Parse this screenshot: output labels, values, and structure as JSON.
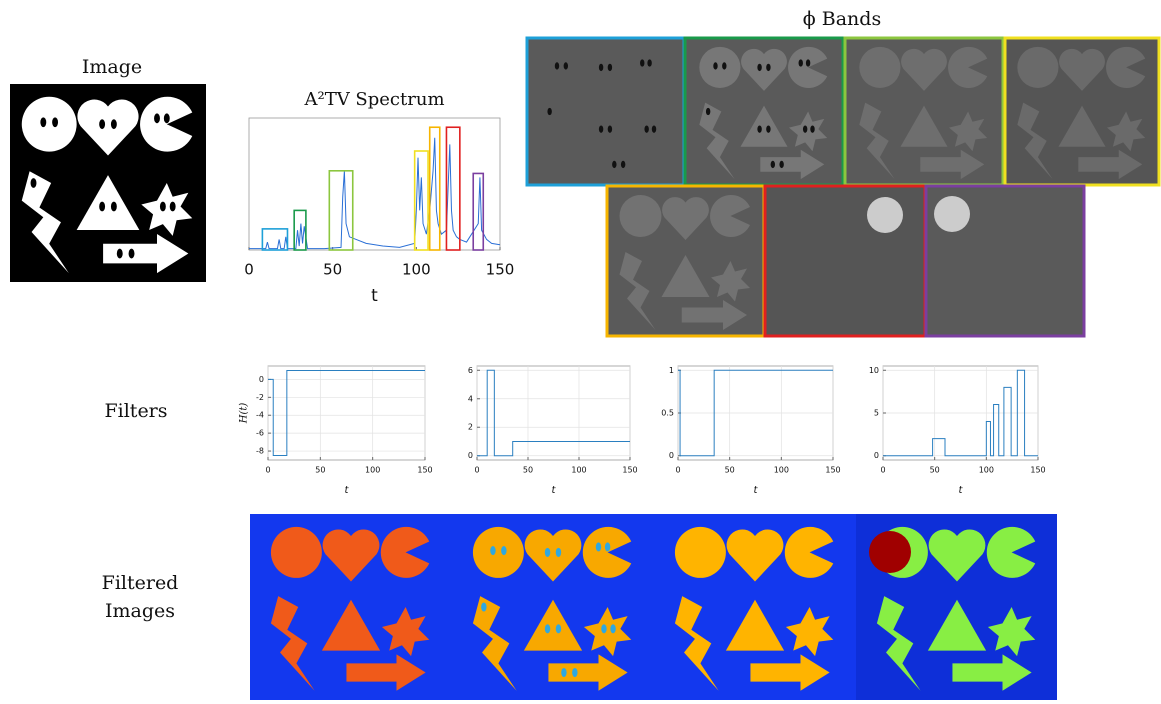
{
  "labels": {
    "image": "Image",
    "bands": "ϕ Bands",
    "filters": "Filters",
    "filtered": [
      "Filtered",
      "Images"
    ]
  },
  "chart_data": [
    {
      "type": "line",
      "title": "A²TV Spectrum",
      "xlabel": "t",
      "color": "#2a6fd6",
      "x": [
        0,
        10,
        11,
        12,
        17,
        18,
        19,
        21,
        22,
        23,
        28,
        29,
        30,
        31,
        32,
        33,
        35,
        45,
        55,
        56,
        57,
        58,
        60,
        70,
        80,
        90,
        99,
        100,
        101,
        102,
        103,
        104,
        106,
        108,
        110,
        111,
        112,
        113,
        115,
        118,
        120,
        121,
        122,
        124,
        126,
        130,
        137,
        138,
        139,
        142,
        145,
        150
      ],
      "values": [
        0.01,
        0.01,
        0.06,
        0.01,
        0.01,
        0.08,
        0.01,
        0.01,
        0.1,
        0.01,
        0.01,
        0.15,
        0.03,
        0.2,
        0.05,
        0.18,
        0.01,
        0.01,
        0.02,
        0.4,
        0.6,
        0.2,
        0.1,
        0.05,
        0.03,
        0.02,
        0.05,
        0.3,
        0.7,
        0.3,
        0.55,
        0.2,
        0.12,
        0.3,
        0.6,
        0.85,
        0.3,
        0.2,
        0.12,
        0.15,
        0.8,
        0.3,
        0.15,
        0.1,
        0.08,
        0.06,
        0.2,
        0.55,
        0.15,
        0.08,
        0.05,
        0.04
      ],
      "xlim": [
        0,
        150
      ],
      "ylim": [
        0,
        1
      ],
      "xticks": [
        0,
        50,
        100,
        150
      ],
      "grid": false,
      "annotations": [
        {
          "x": [
            8,
            23
          ],
          "top": 0.16,
          "color": "#1ea0d8"
        },
        {
          "x": [
            27,
            34
          ],
          "top": 0.3,
          "color": "#1a9a4a"
        },
        {
          "x": [
            48,
            62
          ],
          "top": 0.6,
          "color": "#8cc63f"
        },
        {
          "x": [
            99,
            107
          ],
          "top": 0.75,
          "color": "#f0e020"
        },
        {
          "x": [
            108,
            114
          ],
          "top": 0.93,
          "color": "#f7b500"
        },
        {
          "x": [
            118,
            126
          ],
          "top": 0.93,
          "color": "#e02020"
        },
        {
          "x": [
            134,
            140
          ],
          "top": 0.58,
          "color": "#7b3fa0"
        }
      ]
    },
    {
      "type": "line",
      "ylabel": "H(t)",
      "xlabel": "t",
      "color": "#2a7fc0",
      "x": [
        0,
        5,
        5,
        18,
        18,
        150
      ],
      "values": [
        0,
        0,
        -8.5,
        -8.5,
        1,
        1
      ],
      "xlim": [
        0,
        150
      ],
      "ylim": [
        -9,
        1.5
      ],
      "xticks": [
        0,
        50,
        100,
        150
      ],
      "yticks": [
        0,
        -2,
        -4,
        -6,
        -8
      ],
      "grid": true
    },
    {
      "type": "line",
      "xlabel": "t",
      "color": "#2a7fc0",
      "x": [
        0,
        10,
        10,
        17,
        17,
        35,
        35,
        150
      ],
      "values": [
        0,
        0,
        6,
        6,
        0,
        0,
        1,
        1
      ],
      "xlim": [
        0,
        150
      ],
      "ylim": [
        -0.3,
        6.3
      ],
      "xticks": [
        0,
        50,
        100,
        150
      ],
      "yticks": [
        0,
        2,
        4,
        6
      ],
      "grid": true
    },
    {
      "type": "line",
      "xlabel": "t",
      "color": "#2a7fc0",
      "x": [
        0,
        2,
        2,
        35,
        35,
        150
      ],
      "values": [
        1,
        1,
        0,
        0,
        1,
        1
      ],
      "xlim": [
        0,
        150
      ],
      "ylim": [
        -0.05,
        1.05
      ],
      "xticks": [
        0,
        50,
        100,
        150
      ],
      "yticks": [
        0,
        0.5,
        1
      ],
      "grid": true
    },
    {
      "type": "line",
      "xlabel": "t",
      "color": "#2a7fc0",
      "x": [
        0,
        48,
        48,
        60,
        60,
        100,
        100,
        104,
        104,
        107,
        107,
        112,
        112,
        117,
        117,
        124,
        124,
        130,
        130,
        137,
        137,
        150
      ],
      "values": [
        0,
        0,
        2,
        2,
        0,
        0,
        4,
        4,
        0,
        0,
        6,
        6,
        0,
        0,
        8,
        8,
        0,
        0,
        10,
        10,
        0,
        0
      ],
      "xlim": [
        0,
        150
      ],
      "ylim": [
        -0.5,
        10.5
      ],
      "xticks": [
        0,
        50,
        100,
        150
      ],
      "yticks": [
        0,
        5,
        10
      ],
      "grid": true
    }
  ]
}
